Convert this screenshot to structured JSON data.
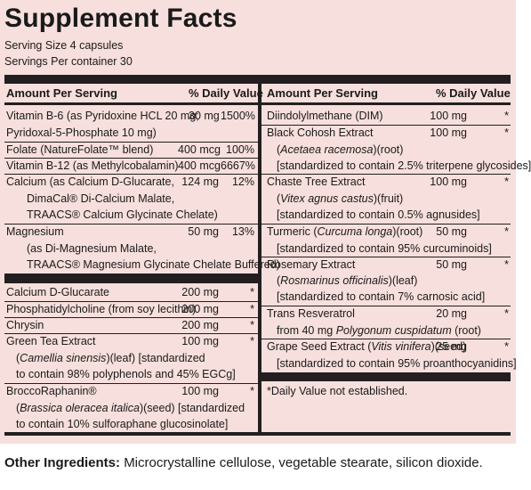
{
  "title": "Supplement Facts",
  "serving_size": "Serving Size 4 capsules",
  "servings_per_container": "Servings Per container 30",
  "header": {
    "amount_per_serving": "Amount Per Serving",
    "daily_value": "% Daily Value"
  },
  "left_rows": [
    {
      "l1": "Vitamin B-6  (as Pyridoxine HCL 20 mg;",
      "amt": "30 mg",
      "dv": "1500%",
      "l2": "Pyridoxal-5-Phosphate 10 mg)"
    },
    {
      "l1": "Folate (NatureFolate™ blend)",
      "amt": "400 mcg",
      "dv": "100%"
    },
    {
      "l1": "Vitamin B-12 (as Methylcobalamin)",
      "amt": "400 mcg",
      "dv": "6667%"
    },
    {
      "l1": "Calcium (as Calcium D-Glucarate,",
      "amt": "124 mg",
      "dv": "12%",
      "l2": "DimaCal® Di-Calcium Malate,",
      "l3": "TRAACS® Calcium Glycinate Chelate)"
    },
    {
      "l1": "Magnesium",
      "amt": "50 mg",
      "dv": "13%",
      "l2": "(as Di-Magnesium Malate,",
      "l3": "TRAACS® Magnesium Glycinate Chelate Buffered)"
    },
    {
      "l1": "Calcium D-Glucarate",
      "amt": "200 mg",
      "dv": "*"
    },
    {
      "l1": "Phosphatidylcholine (from soy lecithin)",
      "amt": "200 mg",
      "dv": "*"
    },
    {
      "l1": "Chrysin",
      "amt": "200 mg",
      "dv": "*"
    },
    {
      "l1": "Green Tea Extract",
      "amt": "100 mg",
      "dv": "*",
      "l2a": "Camellia sinensis",
      "l2b": ")(leaf) [standardized",
      "l3": "to contain 98% polyphenols and 45% EGCg]"
    },
    {
      "l1": "BroccoRaphanin®",
      "amt": "100 mg",
      "dv": "*",
      "l2a": "Brassica oleracea italica",
      "l2b": ")(seed) [standardized",
      "l3": "to contain 10% sulforaphane glucosinolate]"
    }
  ],
  "right_rows": [
    {
      "l1": "Diindolylmethane (DIM)",
      "amt": "100 mg",
      "dv": "*"
    },
    {
      "l1": "Black Cohosh Extract",
      "amt": "100 mg",
      "dv": "*",
      "l2a": "Acetaea racemosa",
      "l2b": ")(root)",
      "l3": "[standardized to contain 2.5% triterpene glycosides]"
    },
    {
      "l1": "Chaste Tree Extract",
      "amt": "100 mg",
      "dv": "*",
      "l2a": "Vitex agnus castus",
      "l2b": ")(fruit)",
      "l3": "[standardized to contain 0.5% agnusides]"
    },
    {
      "l1a": "Turmeric (",
      "l1b": "Curcuma longa",
      "l1c": ")(root)",
      "amt": "50 mg",
      "dv": "*",
      "l2": "[standardized to contain 95% curcuminoids]"
    },
    {
      "l1": "Rosemary Extract",
      "amt": "50 mg",
      "dv": "*",
      "l2a": "Rosmarinus officinalis",
      "l2b": ")(leaf)",
      "l3": "[standardized to contain 7% carnosic acid]"
    },
    {
      "l1": "Trans Resveratrol",
      "amt": "20 mg",
      "dv": "*",
      "l2a": "from 40 mg ",
      "l2b": "Polygonum cuspidatum",
      "l2c": " (root)"
    },
    {
      "l1a": "Grape Seed Extract (",
      "l1b": "Vitis vinifera",
      "l1c": ")(seed)",
      "amt": "25 mg",
      "dv": "*",
      "l2": "[standardized to contain 95% proanthocyanidins]"
    }
  ],
  "footnote": "*Daily Value not established.",
  "other_ingredients": {
    "label": "Other Ingredients:",
    "text": "Microcrystalline cellulose, vegetable stearate,  silicon dioxide."
  }
}
